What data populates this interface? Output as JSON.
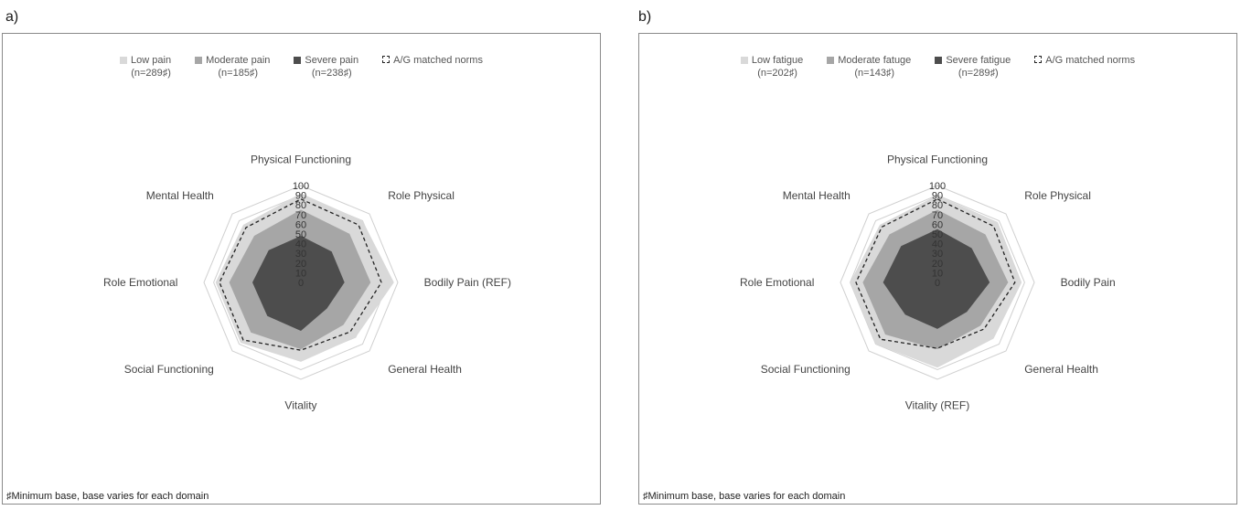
{
  "chart_data": [
    {
      "panel_label": "a)",
      "type": "radar",
      "axes": [
        "Physical Functioning",
        "Role Physical",
        "Bodily Pain (REF)",
        "General Health",
        "Vitality",
        "Social Functioning",
        "Role Emotional",
        "Mental Health"
      ],
      "r_ticks": [
        "0",
        "10",
        "20",
        "30",
        "40",
        "50",
        "60",
        "70",
        "80",
        "90",
        "100"
      ],
      "rlim": [
        0,
        100
      ],
      "legend_placement": "top",
      "series": [
        {
          "name": "Low pain",
          "n": "(n=289♯)",
          "color": "#d9d9d9",
          "values": [
            92,
            90,
            96,
            80,
            82,
            88,
            88,
            84
          ]
        },
        {
          "name": "Moderate pain",
          "n": "(n=185♯)",
          "color": "#a6a6a6",
          "values": [
            75,
            71,
            72,
            62,
            69,
            73,
            74,
            68
          ]
        },
        {
          "name": "Severe pain",
          "n": "(n=238♯)",
          "color": "#4d4d4d",
          "values": [
            48,
            45,
            45,
            38,
            50,
            49,
            50,
            47
          ]
        },
        {
          "name": "A/G matched norms",
          "n": "",
          "color": "#222222",
          "dashed": true,
          "values": [
            86,
            84,
            83,
            72,
            70,
            84,
            84,
            80
          ]
        }
      ],
      "footnote": "♯Minimum base, base varies for each domain"
    },
    {
      "panel_label": "b)",
      "type": "radar",
      "axes": [
        "Physical Functioning",
        "Role Physical",
        "Bodily Pain",
        "General Health",
        "Vitality (REF)",
        "Social Functioning",
        "Role Emotional",
        "Mental Health"
      ],
      "r_ticks": [
        "0",
        "10",
        "20",
        "30",
        "40",
        "50",
        "60",
        "70",
        "80",
        "90",
        "100"
      ],
      "rlim": [
        0,
        100
      ],
      "legend_placement": "top",
      "series": [
        {
          "name": "Low fatigue",
          "n": "(n=202♯)",
          "color": "#d9d9d9",
          "values": [
            90,
            88,
            87,
            82,
            88,
            90,
            90,
            84
          ]
        },
        {
          "name": "Moderate fatuge",
          "n": "(n=143♯)",
          "color": "#a6a6a6",
          "values": [
            75,
            70,
            73,
            63,
            69,
            76,
            77,
            70
          ]
        },
        {
          "name": "Severe fatigue",
          "n": "(n=289♯)",
          "color": "#4d4d4d",
          "values": [
            55,
            50,
            54,
            43,
            48,
            47,
            56,
            53
          ]
        },
        {
          "name": "A/G matched norms",
          "n": "",
          "color": "#222222",
          "dashed": true,
          "values": [
            86,
            82,
            80,
            68,
            68,
            83,
            84,
            81
          ]
        }
      ],
      "footnote": "♯Minimum base, base varies for each domain"
    }
  ]
}
